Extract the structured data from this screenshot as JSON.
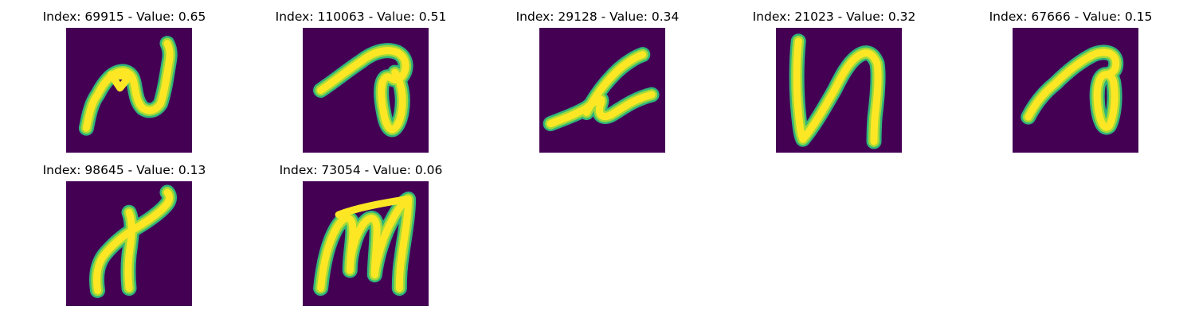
{
  "chart_data": {
    "type": "image-grid",
    "layout": {
      "rows": 2,
      "cols": 5
    },
    "colormap": "viridis",
    "colors": {
      "background": "#440154",
      "stroke_low": "#31b57b",
      "stroke_mid": "#a0da39",
      "stroke_high": "#fde725"
    },
    "panels": [
      {
        "title": "Index: 69915 - Value: 0.65",
        "index": 69915,
        "value": 0.65,
        "glyph": "glyph-1"
      },
      {
        "title": "Index: 110063 - Value: 0.51",
        "index": 110063,
        "value": 0.51,
        "glyph": "glyph-2"
      },
      {
        "title": "Index: 29128 - Value: 0.34",
        "index": 29128,
        "value": 0.34,
        "glyph": "glyph-3"
      },
      {
        "title": "Index: 21023 - Value: 0.32",
        "index": 21023,
        "value": 0.32,
        "glyph": "glyph-4"
      },
      {
        "title": "Index: 67666 - Value: 0.15",
        "index": 67666,
        "value": 0.15,
        "glyph": "glyph-5"
      },
      {
        "title": "Index: 98645 - Value: 0.13",
        "index": 98645,
        "value": 0.13,
        "glyph": "glyph-6"
      },
      {
        "title": "Index: 73054 - Value: 0.06",
        "index": 73054,
        "value": 0.06,
        "glyph": "glyph-7"
      }
    ]
  }
}
